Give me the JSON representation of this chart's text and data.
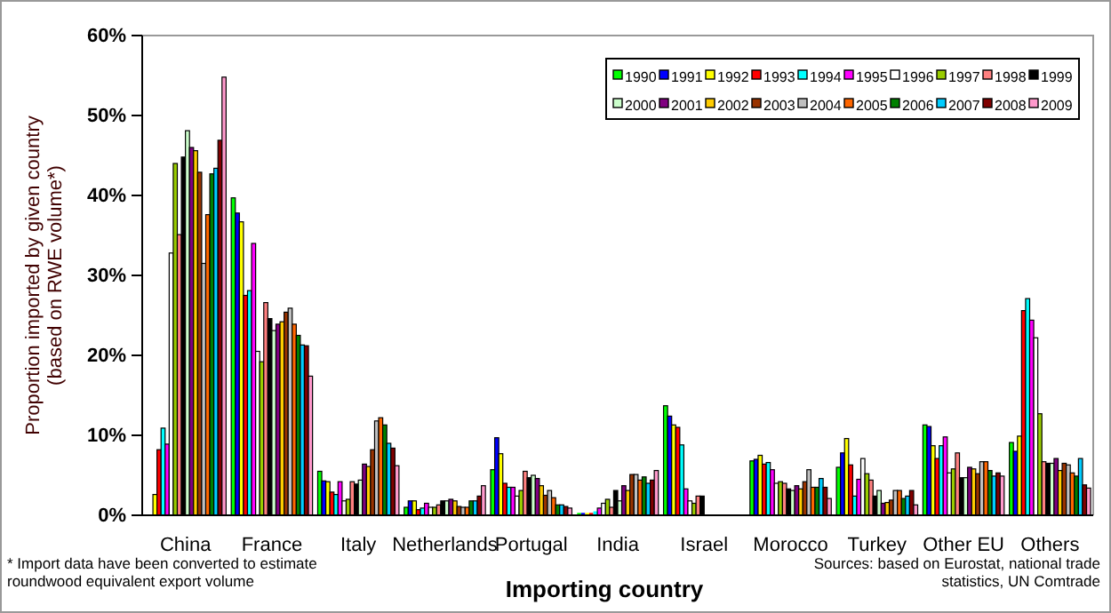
{
  "chart_data": {
    "type": "bar",
    "categories": [
      "China",
      "France",
      "Italy",
      "Netherlands",
      "Portugal",
      "India",
      "Israel",
      "Morocco",
      "Turkey",
      "Other EU",
      "Others"
    ],
    "xlabel": "Importing country",
    "ylabel": "Proportion imported by given country (based on RWE volume*)",
    "ylim": [
      0,
      60
    ],
    "yticks": [
      {
        "value": 0,
        "label": "0%"
      },
      {
        "value": 10,
        "label": "10%"
      },
      {
        "value": 20,
        "label": "20%"
      },
      {
        "value": 30,
        "label": "30%"
      },
      {
        "value": 40,
        "label": "40%"
      },
      {
        "value": 50,
        "label": "50%"
      },
      {
        "value": 60,
        "label": "60%"
      }
    ],
    "grid": false,
    "legend": "top right",
    "annotations": [
      "* Import data have been converted to estimate roundwood equivalent export volume",
      "Sources: based on Eurostat, national trade statistics, UN Comtrade"
    ],
    "series": [
      {
        "name": "1990",
        "color": "#00ff00",
        "values": [
          null,
          39.7,
          5.5,
          1.0,
          5.7,
          0.3,
          13.7,
          6.8,
          6.0,
          11.3,
          9.1
        ]
      },
      {
        "name": "1991",
        "color": "#0000ff",
        "values": [
          null,
          37.8,
          4.3,
          1.8,
          9.7,
          0.3,
          12.4,
          7.0,
          7.8,
          11.1,
          8.0
        ]
      },
      {
        "name": "1992",
        "color": "#ffff00",
        "values": [
          2.6,
          36.7,
          4.2,
          1.8,
          7.7,
          0.3,
          11.3,
          7.5,
          9.6,
          8.7,
          9.9
        ]
      },
      {
        "name": "1993",
        "color": "#ff0000",
        "values": [
          8.2,
          27.5,
          2.9,
          0.7,
          4.0,
          0.3,
          11.0,
          6.4,
          6.3,
          7.1,
          25.6
        ]
      },
      {
        "name": "1994",
        "color": "#00ffff",
        "values": [
          10.9,
          28.1,
          2.6,
          0.9,
          3.5,
          0.5,
          8.8,
          6.6,
          2.4,
          8.7,
          27.1
        ]
      },
      {
        "name": "1995",
        "color": "#ff00ff",
        "values": [
          8.9,
          34.0,
          4.2,
          1.5,
          3.5,
          0.9,
          3.3,
          5.7,
          4.5,
          9.8,
          24.4
        ]
      },
      {
        "name": "1996",
        "color": "#ffffff",
        "values": [
          32.8,
          20.5,
          1.8,
          1.0,
          2.4,
          1.5,
          1.8,
          4.0,
          7.1,
          5.3,
          22.2
        ]
      },
      {
        "name": "1997",
        "color": "#99cc00",
        "values": [
          44.0,
          19.2,
          2.0,
          1.0,
          3.1,
          2.0,
          1.5,
          4.2,
          5.2,
          5.8,
          12.7
        ]
      },
      {
        "name": "1998",
        "color": "#ff8080",
        "values": [
          35.1,
          26.6,
          4.2,
          1.3,
          5.5,
          1.0,
          2.4,
          4.0,
          4.4,
          7.8,
          6.7
        ]
      },
      {
        "name": "1999",
        "color": "#000000",
        "values": [
          44.8,
          24.6,
          3.9,
          1.8,
          4.7,
          3.1,
          2.4,
          3.3,
          2.4,
          4.7,
          6.5
        ]
      },
      {
        "name": "2000",
        "color": "#ccffcc",
        "values": [
          48.1,
          23.1,
          4.4,
          1.8,
          5.0,
          1.8,
          null,
          3.1,
          3.1,
          4.7,
          6.5
        ]
      },
      {
        "name": "2001",
        "color": "#800080",
        "values": [
          46.0,
          23.9,
          6.4,
          2.0,
          4.6,
          3.7,
          null,
          3.7,
          1.5,
          6.0,
          7.1
        ]
      },
      {
        "name": "2002",
        "color": "#ffcc00",
        "values": [
          45.6,
          24.2,
          6.1,
          1.8,
          3.7,
          3.1,
          null,
          3.3,
          1.6,
          5.8,
          5.6
        ]
      },
      {
        "name": "2003",
        "color": "#993300",
        "values": [
          42.9,
          25.4,
          8.2,
          1.1,
          2.5,
          5.1,
          null,
          4.2,
          1.9,
          5.2,
          6.5
        ]
      },
      {
        "name": "2004",
        "color": "#c0c0c0",
        "values": [
          31.5,
          25.9,
          11.8,
          1.0,
          3.1,
          5.1,
          null,
          5.7,
          3.1,
          6.7,
          6.3
        ]
      },
      {
        "name": "2005",
        "color": "#ff6600",
        "values": [
          37.6,
          23.9,
          12.2,
          1.0,
          2.2,
          4.4,
          null,
          3.5,
          3.1,
          6.7,
          5.3
        ]
      },
      {
        "name": "2006",
        "color": "#008000",
        "values": [
          42.7,
          22.5,
          11.3,
          1.8,
          1.3,
          4.8,
          null,
          3.5,
          2.1,
          5.6,
          4.9
        ]
      },
      {
        "name": "2007",
        "color": "#00ccff",
        "values": [
          43.4,
          21.3,
          9.0,
          1.8,
          1.3,
          4.0,
          null,
          4.6,
          2.4,
          4.9,
          7.1
        ]
      },
      {
        "name": "2008",
        "color": "#800000",
        "values": [
          46.9,
          21.2,
          8.4,
          2.4,
          1.1,
          4.4,
          null,
          3.5,
          3.1,
          5.3,
          3.8
        ]
      },
      {
        "name": "2009",
        "color": "#ff99cc",
        "values": [
          54.8,
          17.4,
          6.2,
          3.7,
          0.9,
          5.6,
          null,
          2.1,
          1.3,
          4.9,
          3.4
        ]
      }
    ]
  }
}
